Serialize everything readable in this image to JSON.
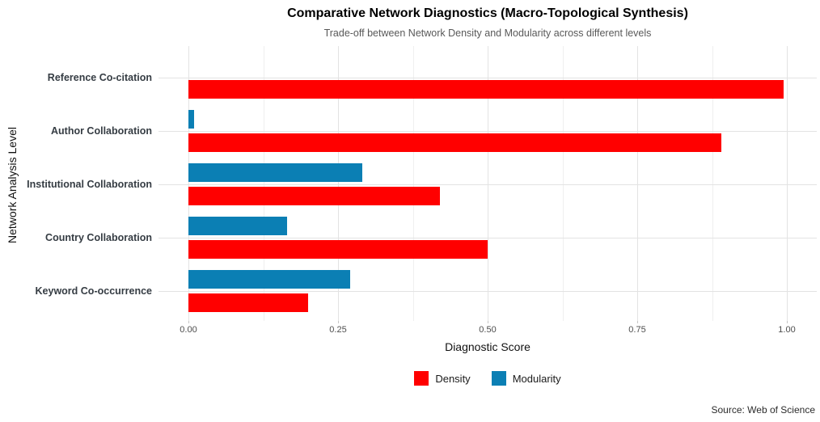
{
  "chart_data": {
    "type": "bar",
    "orientation": "horizontal",
    "title": "Comparative Network Diagnostics (Macro-Topological Synthesis)",
    "subtitle": "Trade-off between Network Density and Modularity across different levels",
    "xlabel": "Diagnostic Score",
    "ylabel": "Network Analysis Level",
    "categories": [
      "Reference Co-citation",
      "Author Collaboration",
      "Institutional Collaboration",
      "Country Collaboration",
      "Keyword Co-occurrence"
    ],
    "series": [
      {
        "name": "Density",
        "color": "#ff0000",
        "values": [
          0.995,
          0.89,
          0.42,
          0.5,
          0.2
        ]
      },
      {
        "name": "Modularity",
        "color": "#0b7fb4",
        "values": [
          0.0,
          0.01,
          0.29,
          0.165,
          0.27
        ]
      }
    ],
    "xlim": [
      0,
      1
    ],
    "xticks": [
      0,
      0.25,
      0.5,
      0.75,
      1.0
    ],
    "xtick_labels": [
      "0.00",
      "0.25",
      "0.50",
      "0.75",
      "1.00"
    ],
    "grid": true,
    "legend_position": "bottom",
    "caption": "Source: Web of Science"
  },
  "colors": {
    "density": "#ff0000",
    "modularity": "#0b7fb4",
    "grid_major": "#e3e3e3",
    "grid_minor": "#efefef",
    "axis_text": "#4d4d4d",
    "category_text": "#353c43",
    "subtitle_text": "#595959"
  }
}
